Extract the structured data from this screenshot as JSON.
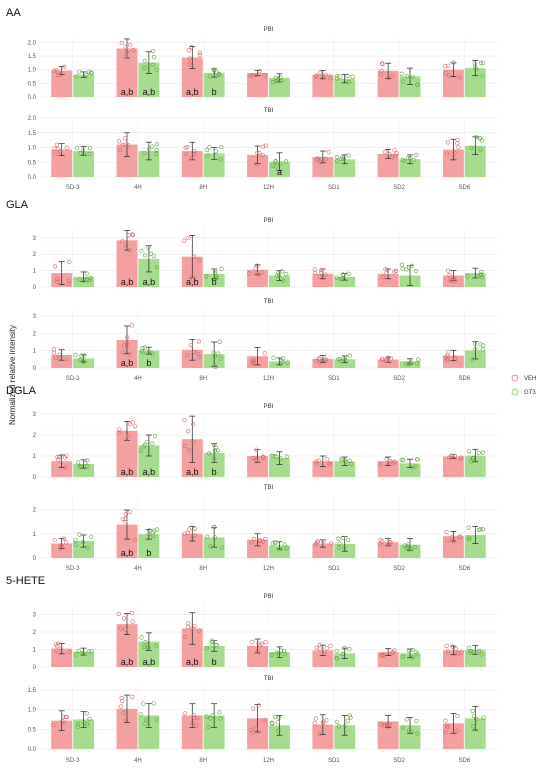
{
  "chart_data": {
    "type": "bar",
    "y_axis_label": "Normalized relative intensity",
    "x_categories": [
      "SD-3",
      "4H",
      "8H",
      "12H",
      "SD1",
      "SD2",
      "SD6"
    ],
    "legend": [
      {
        "name": "VEH",
        "color": "#f4a0a0"
      },
      {
        "name": "GT3",
        "color": "#a6dd8c"
      }
    ],
    "groups": [
      {
        "title": "AA",
        "panels": [
          {
            "subtitle": "PBI",
            "ylim": [
              0,
              2.2
            ],
            "yticks": [
              "0.0",
              "0.5",
              "1.0",
              "1.5",
              "2.0"
            ],
            "yticks_values": [
              0,
              0.5,
              1.0,
              1.5,
              2.0
            ],
            "veh": [
              0.97,
              1.78,
              1.45,
              0.88,
              0.82,
              0.96,
              1.0
            ],
            "gt3": [
              0.82,
              1.26,
              0.88,
              0.7,
              0.67,
              0.76,
              1.06
            ],
            "veh_err": [
              0.15,
              0.35,
              0.4,
              0.1,
              0.15,
              0.28,
              0.25
            ],
            "gt3_err": [
              0.1,
              0.4,
              0.15,
              0.15,
              0.15,
              0.3,
              0.28
            ],
            "veh_sig": [
              "",
              "a,b",
              "a,b",
              "",
              "",
              "",
              ""
            ],
            "gt3_sig": [
              "",
              "a,b",
              "b",
              "",
              "",
              "",
              ""
            ]
          },
          {
            "subtitle": "TBI",
            "ylim": [
              0,
              2.0
            ],
            "yticks": [
              "0.0",
              "0.5",
              "1.0",
              "1.5",
              "2.0"
            ],
            "yticks_values": [
              0,
              0.5,
              1.0,
              1.5,
              2.0
            ],
            "veh": [
              0.93,
              1.1,
              0.88,
              0.75,
              0.68,
              0.78,
              0.93
            ],
            "gt3": [
              0.88,
              0.88,
              0.8,
              0.52,
              0.6,
              0.6,
              1.06
            ],
            "veh_err": [
              0.2,
              0.4,
              0.3,
              0.3,
              0.2,
              0.15,
              0.35
            ],
            "gt3_err": [
              0.15,
              0.3,
              0.2,
              0.3,
              0.15,
              0.15,
              0.3
            ],
            "veh_sig": [
              "",
              "",
              "",
              "",
              "",
              "",
              ""
            ],
            "gt3_sig": [
              "",
              "",
              "",
              "a",
              "",
              "",
              ""
            ]
          }
        ]
      },
      {
        "title": "GLA",
        "panels": [
          {
            "subtitle": "PBI",
            "ylim": [
              0,
              3.6
            ],
            "yticks": [
              "0",
              "1",
              "2",
              "3"
            ],
            "yticks_values": [
              0,
              1,
              2,
              3
            ],
            "veh": [
              0.85,
              2.85,
              1.85,
              1.05,
              0.8,
              0.8,
              0.7
            ],
            "gt3": [
              0.62,
              1.72,
              0.8,
              0.7,
              0.62,
              0.7,
              0.85
            ],
            "veh_err": [
              0.7,
              0.6,
              1.3,
              0.3,
              0.3,
              0.3,
              0.3
            ],
            "gt3_err": [
              0.3,
              0.8,
              0.3,
              0.3,
              0.2,
              0.6,
              0.3
            ],
            "veh_sig": [
              "",
              "a,b",
              "a,b",
              "",
              "",
              "",
              ""
            ],
            "gt3_sig": [
              "",
              "a,b",
              "b",
              "",
              "",
              "",
              ""
            ]
          },
          {
            "subtitle": "TBI",
            "ylim": [
              0,
              3.4
            ],
            "yticks": [
              "0",
              "1",
              "2",
              "3"
            ],
            "yticks_values": [
              0,
              1,
              2,
              3
            ],
            "veh": [
              0.75,
              1.62,
              1.05,
              0.68,
              0.52,
              0.48,
              0.72
            ],
            "gt3": [
              0.55,
              1.0,
              0.8,
              0.38,
              0.5,
              0.38,
              1.02
            ],
            "veh_err": [
              0.3,
              0.8,
              0.6,
              0.5,
              0.2,
              0.15,
              0.3
            ],
            "gt3_err": [
              0.2,
              0.2,
              0.7,
              0.2,
              0.2,
              0.15,
              0.5
            ],
            "veh_sig": [
              "",
              "a,b",
              "",
              "",
              "",
              "",
              ""
            ],
            "gt3_sig": [
              "",
              "b",
              "",
              "",
              "",
              "",
              ""
            ]
          }
        ]
      },
      {
        "title": "DGLA",
        "panels": [
          {
            "subtitle": "PBI",
            "ylim": [
              0,
              3.0
            ],
            "yticks": [
              "0",
              "1",
              "2",
              "3"
            ],
            "yticks_values": [
              0,
              1,
              2,
              3
            ],
            "veh": [
              0.75,
              2.2,
              1.8,
              1.0,
              0.75,
              0.75,
              0.98
            ],
            "gt3": [
              0.62,
              1.5,
              1.15,
              0.9,
              0.75,
              0.65,
              1.02
            ],
            "veh_err": [
              0.3,
              0.45,
              1.1,
              0.3,
              0.25,
              0.2,
              0.1
            ],
            "gt3_err": [
              0.2,
              0.5,
              0.45,
              0.3,
              0.2,
              0.2,
              0.3
            ],
            "veh_sig": [
              "",
              "a,b",
              "a,b",
              "",
              "",
              "",
              ""
            ],
            "gt3_sig": [
              "",
              "a,b",
              "b",
              "",
              "",
              "",
              ""
            ]
          },
          {
            "subtitle": "TBI",
            "ylim": [
              0,
              2.6
            ],
            "yticks": [
              "0",
              "1",
              "2"
            ],
            "yticks_values": [
              0,
              1,
              2
            ],
            "veh": [
              0.6,
              1.38,
              1.0,
              0.75,
              0.6,
              0.65,
              0.9
            ],
            "gt3": [
              0.7,
              0.98,
              0.85,
              0.52,
              0.58,
              0.55,
              0.95
            ],
            "veh_err": [
              0.2,
              0.6,
              0.3,
              0.25,
              0.15,
              0.15,
              0.2
            ],
            "gt3_err": [
              0.25,
              0.2,
              0.4,
              0.15,
              0.3,
              0.25,
              0.35
            ],
            "veh_sig": [
              "",
              "a,b",
              "",
              "",
              "",
              "",
              ""
            ],
            "gt3_sig": [
              "",
              "b",
              "",
              "",
              "",
              "",
              ""
            ]
          }
        ]
      },
      {
        "title": "5-HETE",
        "panels": [
          {
            "subtitle": "PBI",
            "ylim": [
              0,
              3.6
            ],
            "yticks": [
              "0",
              "1",
              "2",
              "3"
            ],
            "yticks_values": [
              0,
              1,
              2,
              3
            ],
            "veh": [
              1.05,
              2.45,
              2.2,
              1.2,
              0.95,
              0.85,
              0.95
            ],
            "gt3": [
              0.88,
              1.45,
              1.2,
              0.85,
              0.78,
              0.78,
              0.98
            ],
            "veh_err": [
              0.3,
              0.6,
              0.9,
              0.4,
              0.3,
              0.2,
              0.25
            ],
            "gt3_err": [
              0.2,
              0.5,
              0.3,
              0.3,
              0.3,
              0.25,
              0.25
            ],
            "veh_sig": [
              "",
              "a,b",
              "a,b",
              "",
              "",
              "",
              ""
            ],
            "gt3_sig": [
              "",
              "a,b",
              "b",
              "",
              "",
              "",
              ""
            ]
          },
          {
            "subtitle": "TBI",
            "ylim": [
              0,
              1.6
            ],
            "yticks": [
              "0.0",
              "0.5",
              "1.0",
              "1.5"
            ],
            "yticks_values": [
              0,
              0.5,
              1.0,
              1.5
            ],
            "veh": [
              0.72,
              1.02,
              0.85,
              0.78,
              0.62,
              0.7,
              0.65
            ],
            "gt3": [
              0.75,
              0.85,
              0.85,
              0.6,
              0.6,
              0.6,
              0.78
            ],
            "veh_err": [
              0.25,
              0.35,
              0.3,
              0.35,
              0.25,
              0.15,
              0.25
            ],
            "gt3_err": [
              0.2,
              0.3,
              0.3,
              0.25,
              0.25,
              0.2,
              0.3
            ],
            "veh_sig": [
              "",
              "",
              "",
              "",
              "",
              "",
              ""
            ],
            "gt3_sig": [
              "",
              "",
              "",
              "",
              "",
              "",
              ""
            ]
          }
        ]
      }
    ]
  }
}
